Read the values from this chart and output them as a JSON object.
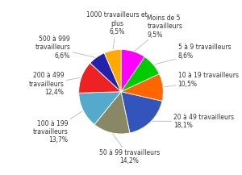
{
  "slices": [
    {
      "label": "Moins de 5\ntravailleurs\n9,5%",
      "value": 9.5,
      "color": "#FF00FF"
    },
    {
      "label": "5 à 9 travailleurs\n8,6%",
      "value": 8.6,
      "color": "#00CC00"
    },
    {
      "label": "10 à 19 travailleurs\n10,5%",
      "value": 10.5,
      "color": "#FF6600"
    },
    {
      "label": "20 à 49 travailleurs\n18,1%",
      "value": 18.1,
      "color": "#3355BB"
    },
    {
      "label": "50 à 99 travailleurs\n14,2%",
      "value": 14.2,
      "color": "#888866"
    },
    {
      "label": "100 à 199\ntravailleurs\n13,7%",
      "value": 13.7,
      "color": "#55AACC"
    },
    {
      "label": "200 à 499\ntravailleurs\n12,4%",
      "value": 12.4,
      "color": "#EE2222"
    },
    {
      "label": "500 à 999\ntravailleurs\n6,6%",
      "value": 6.6,
      "color": "#2222AA"
    },
    {
      "label": "1000 travailleurs et\nplus\n6,5%",
      "value": 6.5,
      "color": "#FFAA00"
    }
  ],
  "label_positions": [
    {
      "ha": "left",
      "xt": 0.62,
      "yt": 1.55
    },
    {
      "ha": "left",
      "xt": 1.35,
      "yt": 0.95
    },
    {
      "ha": "left",
      "xt": 1.35,
      "yt": 0.28
    },
    {
      "ha": "left",
      "xt": 1.25,
      "yt": -0.7
    },
    {
      "ha": "center",
      "xt": 0.2,
      "yt": -1.55
    },
    {
      "ha": "right",
      "xt": -1.25,
      "yt": -0.95
    },
    {
      "ha": "right",
      "xt": -1.35,
      "yt": 0.18
    },
    {
      "ha": "right",
      "xt": -1.2,
      "yt": 1.05
    },
    {
      "ha": "center",
      "xt": -0.1,
      "yt": 1.62
    }
  ],
  "label_fontsize": 5.5,
  "background_color": "#ffffff"
}
